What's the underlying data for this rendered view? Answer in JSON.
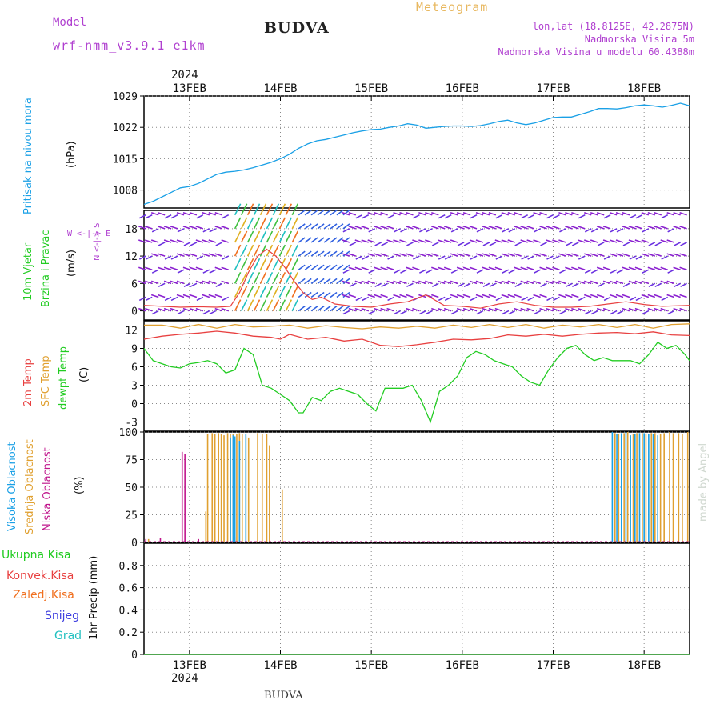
{
  "header": {
    "model_label": "Model",
    "model_name": "wrf-nmm_v3.9.1  e1km",
    "station_title": "BUDVA",
    "meteogram_label": "Meteogram",
    "lonlat": "lon,lat (18.8125E, 42.2875N)",
    "altitude": "Nadmorska Visina 5m",
    "model_altitude": "Nadmorska Visina u modelu 60.4388m",
    "credit": "made by Angel",
    "footer_station": "BUDVA"
  },
  "colors": {
    "pressure": "#1aa0e6",
    "temp_2m": "#e84040",
    "temp_sfc": "#e0a030",
    "dewpoint": "#22cc22",
    "cloud_high": "#1aa0e6",
    "cloud_mid": "#e0a030",
    "cloud_low": "#c0168c",
    "model_text": "#b040d0",
    "meteogram_text": "#e8b860"
  },
  "chart_data": [
    {
      "type": "line",
      "panel": "pressure",
      "ylabel_title": "Pritisak na nivou mora",
      "ylabel_unit": "(hPa)",
      "ylim": [
        1004,
        1029
      ],
      "yticks": [
        1008,
        1015,
        1022,
        1029
      ],
      "x_year": "2024",
      "x_ticks": [
        "13FEB",
        "14FEB",
        "15FEB",
        "16FEB",
        "17FEB",
        "18FEB"
      ],
      "x_day_range": [
        12.5,
        18.5
      ],
      "series": [
        {
          "x": [
            12.5,
            12.6,
            12.7,
            12.8,
            12.9,
            13.0,
            13.1,
            13.2,
            13.3,
            13.4,
            13.5,
            13.6,
            13.7,
            13.8,
            13.9,
            14.0,
            14.1,
            14.2,
            14.3,
            14.4,
            14.5,
            14.6,
            14.7,
            14.8,
            14.9,
            15.0,
            15.1,
            15.2,
            15.3,
            15.4,
            15.5,
            15.6,
            15.7,
            15.8,
            15.9,
            16.0,
            16.1,
            16.2,
            16.3,
            16.4,
            16.5,
            16.6,
            16.7,
            16.8,
            16.9,
            17.0,
            17.1,
            17.2,
            17.3,
            17.4,
            17.5,
            17.6,
            17.7,
            17.8,
            17.9,
            18.0,
            18.1,
            18.2,
            18.3,
            18.4,
            18.5
          ],
          "y": [
            1004.8,
            1005.5,
            1006.5,
            1007.5,
            1008.5,
            1008.8,
            1009.5,
            1010.5,
            1011.5,
            1012.0,
            1012.2,
            1012.5,
            1013.0,
            1013.6,
            1014.2,
            1015.0,
            1016.0,
            1017.3,
            1018.3,
            1019.0,
            1019.3,
            1019.8,
            1020.3,
            1020.8,
            1021.2,
            1021.5,
            1021.6,
            1022.0,
            1022.3,
            1022.8,
            1022.5,
            1021.8,
            1022.0,
            1022.2,
            1022.3,
            1022.3,
            1022.2,
            1022.4,
            1022.8,
            1023.3,
            1023.6,
            1023.0,
            1022.6,
            1023.0,
            1023.6,
            1024.2,
            1024.3,
            1024.3,
            1024.9,
            1025.5,
            1026.2,
            1026.2,
            1026.1,
            1026.4,
            1026.8,
            1027.0,
            1026.8,
            1026.5,
            1026.9,
            1027.4,
            1026.8
          ]
        }
      ]
    },
    {
      "type": "line",
      "panel": "wind",
      "ylabel_title_1": "10m Vjetar",
      "ylabel_title_2": "Brzina i Pravac",
      "ylabel_unit": "(m/s)",
      "compass_ns": "N <-|-> S",
      "compass_we": "W <-|-> E",
      "ylim": [
        -2,
        22
      ],
      "yticks": [
        0,
        6,
        12,
        18
      ],
      "series": [
        {
          "name": "speed",
          "x": [
            12.5,
            12.7,
            12.9,
            13.1,
            13.3,
            13.45,
            13.55,
            13.65,
            13.75,
            13.85,
            13.95,
            14.05,
            14.15,
            14.25,
            14.35,
            14.45,
            14.6,
            14.8,
            15.0,
            15.2,
            15.4,
            15.6,
            15.8,
            16.0,
            16.2,
            16.4,
            16.6,
            16.8,
            17.0,
            17.2,
            17.4,
            17.6,
            17.8,
            18.0,
            18.2,
            18.5
          ],
          "y": [
            1.2,
            1.0,
            0.8,
            0.9,
            0.8,
            1.0,
            4.0,
            8.5,
            12.0,
            13.5,
            12.0,
            9.5,
            6.5,
            4.0,
            2.5,
            3.0,
            1.5,
            1.0,
            0.8,
            1.5,
            2.0,
            3.5,
            1.2,
            1.0,
            0.6,
            1.5,
            2.0,
            1.2,
            0.8,
            0.8,
            1.0,
            1.5,
            2.0,
            1.4,
            1.0,
            1.2
          ]
        }
      ]
    },
    {
      "type": "line",
      "panel": "temperature",
      "ylabel_2m": "2m Temp",
      "ylabel_sfc": "SFC Temp",
      "ylabel_dew": "dewpt Temp",
      "ylabel_unit": "(C)",
      "ylim": [
        -4.5,
        13.5
      ],
      "yticks": [
        -3,
        0,
        3,
        6,
        9,
        12
      ],
      "series": [
        {
          "name": "2m Temp",
          "x": [
            12.5,
            12.7,
            12.9,
            13.1,
            13.3,
            13.5,
            13.7,
            13.9,
            14.0,
            14.1,
            14.3,
            14.5,
            14.7,
            14.9,
            15.1,
            15.3,
            15.5,
            15.7,
            15.9,
            16.1,
            16.3,
            16.5,
            16.7,
            16.9,
            17.1,
            17.3,
            17.5,
            17.7,
            17.9,
            18.1,
            18.3,
            18.5
          ],
          "y": [
            10.5,
            11.0,
            11.3,
            11.5,
            11.8,
            11.5,
            11.0,
            10.8,
            10.5,
            11.3,
            10.5,
            10.8,
            10.2,
            10.5,
            9.5,
            9.3,
            9.6,
            10.0,
            10.5,
            10.4,
            10.6,
            11.2,
            11.0,
            11.3,
            11.0,
            11.3,
            11.5,
            11.6,
            11.4,
            11.7,
            11.2,
            11.1
          ]
        },
        {
          "name": "SFC Temp",
          "x": [
            12.5,
            12.7,
            12.9,
            13.1,
            13.3,
            13.5,
            13.7,
            13.9,
            14.1,
            14.3,
            14.5,
            14.7,
            14.9,
            15.1,
            15.3,
            15.5,
            15.7,
            15.9,
            16.1,
            16.3,
            16.5,
            16.7,
            16.9,
            17.1,
            17.3,
            17.5,
            17.7,
            17.9,
            18.1,
            18.3,
            18.5
          ],
          "y": [
            12.8,
            12.8,
            12.3,
            12.9,
            12.3,
            12.9,
            12.5,
            12.6,
            12.8,
            12.3,
            12.7,
            12.4,
            12.2,
            12.5,
            12.3,
            12.6,
            12.3,
            12.8,
            12.4,
            12.9,
            12.4,
            12.9,
            12.3,
            12.8,
            12.5,
            12.9,
            12.4,
            12.9,
            12.3,
            12.9,
            13.0
          ]
        },
        {
          "name": "dewpt Temp",
          "x": [
            12.5,
            12.6,
            12.7,
            12.8,
            12.9,
            13.0,
            13.1,
            13.2,
            13.3,
            13.4,
            13.5,
            13.6,
            13.7,
            13.8,
            13.9,
            14.0,
            14.1,
            14.2,
            14.25,
            14.35,
            14.45,
            14.55,
            14.65,
            14.75,
            14.85,
            14.95,
            15.05,
            15.15,
            15.25,
            15.35,
            15.45,
            15.55,
            15.65,
            15.75,
            15.85,
            15.95,
            16.05,
            16.15,
            16.25,
            16.35,
            16.45,
            16.55,
            16.65,
            16.75,
            16.85,
            16.95,
            17.05,
            17.15,
            17.25,
            17.35,
            17.45,
            17.55,
            17.65,
            17.75,
            17.85,
            17.95,
            18.05,
            18.15,
            18.25,
            18.35,
            18.45,
            18.5
          ],
          "y": [
            9.0,
            7.0,
            6.5,
            6.0,
            5.8,
            6.5,
            6.7,
            7.0,
            6.5,
            5.0,
            5.5,
            9.0,
            8.0,
            3.0,
            2.5,
            1.5,
            0.5,
            -1.5,
            -1.5,
            1.0,
            0.5,
            2.0,
            2.5,
            2.0,
            1.5,
            0.0,
            -1.2,
            2.5,
            2.5,
            2.5,
            3.0,
            0.5,
            -3.0,
            2.0,
            3.0,
            4.5,
            7.5,
            8.5,
            8.0,
            7.0,
            6.5,
            6.0,
            4.5,
            3.5,
            3.0,
            5.5,
            7.5,
            9.0,
            9.5,
            8.0,
            7.0,
            7.5,
            7.0,
            7.0,
            7.0,
            6.5,
            8.0,
            10.0,
            9.0,
            9.5,
            8.0,
            7.0
          ]
        }
      ]
    },
    {
      "type": "bar",
      "panel": "cloud",
      "ylabel_high": "Visoka Oblacnost",
      "ylabel_mid": "Srednja Oblacnost",
      "ylabel_low": "Niska Oblacnost",
      "ylabel_unit": "(%)",
      "ylim": [
        0,
        100
      ],
      "yticks": [
        0,
        25,
        50,
        75,
        100
      ],
      "series": [
        {
          "name": "Niska Oblacnost",
          "x": [
            12.52,
            12.68,
            12.92,
            12.95,
            13.1,
            13.5
          ],
          "values": [
            3,
            4,
            82,
            80,
            3,
            5
          ]
        },
        {
          "name": "Srednja Oblacnost",
          "x": [
            12.55,
            13.18,
            13.2,
            13.25,
            13.28,
            13.32,
            13.35,
            13.38,
            13.42,
            13.45,
            13.48,
            13.52,
            13.55,
            13.58,
            13.62,
            13.65,
            13.75,
            13.8,
            13.85,
            13.88,
            14.02
          ],
          "values": [
            3,
            28,
            98,
            99,
            98,
            99,
            98,
            97,
            99,
            98,
            98,
            98,
            99,
            98,
            96,
            95,
            99,
            98,
            98,
            88,
            48
          ]
        },
        {
          "name": "Visoka Oblacnost",
          "x": [
            13.45,
            13.48,
            13.5,
            13.55,
            13.62,
            17.65,
            17.7,
            17.75,
            17.8,
            17.85,
            17.9,
            17.95,
            18.0,
            18.05,
            18.1,
            18.15
          ],
          "values": [
            95,
            97,
            96,
            92,
            98,
            100,
            98,
            99,
            100,
            97,
            98,
            99,
            99,
            98,
            98,
            97
          ]
        },
        {
          "name": "Srednja Oblacnost (18FEB)",
          "x": [
            17.68,
            17.72,
            17.78,
            17.82,
            17.88,
            17.92,
            17.98,
            18.02,
            18.08,
            18.12,
            18.18,
            18.22,
            18.28,
            18.32,
            18.38,
            18.42,
            18.48
          ],
          "values": [
            99,
            98,
            99,
            100,
            98,
            99,
            99,
            98,
            99,
            99,
            98,
            99,
            100,
            99,
            99,
            98,
            100
          ]
        }
      ]
    },
    {
      "type": "line",
      "panel": "precip",
      "ylabel_unit": "1hr Precip (mm)",
      "legend": [
        "Ukupna Kisa",
        "Konvek.Kisa",
        "Zaledj.Kisa",
        "Snijeg",
        "Grad"
      ],
      "ylim": [
        0,
        1.0
      ],
      "yticks": [
        0,
        0.2,
        0.4,
        0.6,
        0.8
      ],
      "x_ticks": [
        "13FEB",
        "14FEB",
        "15FEB",
        "16FEB",
        "17FEB",
        "18FEB"
      ],
      "x_year": "2024",
      "series": [
        {
          "name": "Ukupna Kisa",
          "x": [
            12.5,
            18.5
          ],
          "y": [
            0,
            0
          ]
        }
      ]
    }
  ]
}
